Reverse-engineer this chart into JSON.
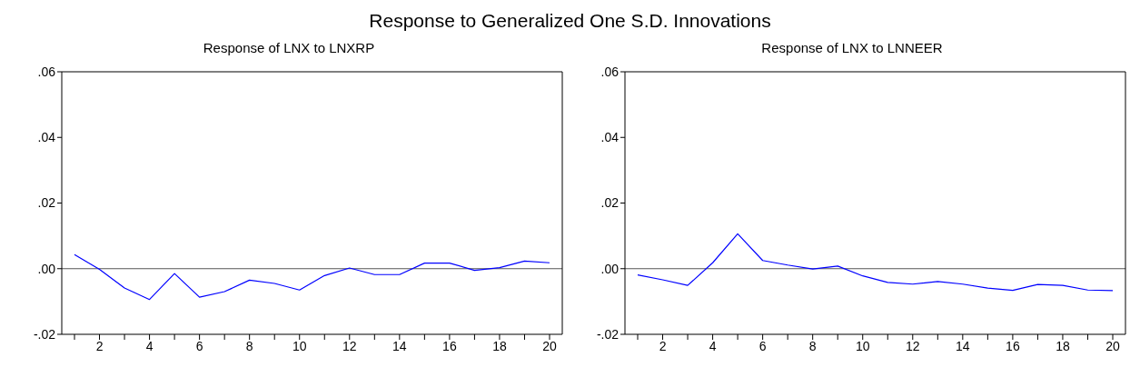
{
  "chart_data": [
    {
      "type": "line",
      "title": "Response to Generalized One S.D. Innovations",
      "subtitle": "Response of LNX to LNXRP",
      "categories": [
        null,
        "2",
        null,
        "4",
        null,
        "6",
        null,
        "8",
        null,
        "10",
        null,
        "12",
        null,
        "14",
        null,
        "16",
        null,
        "18",
        null,
        "20"
      ],
      "series": [
        {
          "color": "#0000ff",
          "values": [
            0.0043,
            -0.0002,
            -0.0059,
            -0.0094,
            -0.0015,
            -0.0087,
            -0.007,
            -0.0035,
            -0.0045,
            -0.0065,
            -0.0021,
            0.0002,
            -0.0018,
            -0.0018,
            0.0017,
            0.0017,
            -0.0005,
            0.0003,
            0.0023,
            0.0018
          ]
        }
      ],
      "ylim": [
        -0.02,
        0.06
      ],
      "yticks": [
        {
          "value": -0.02,
          "label": "-.02"
        },
        {
          "value": 0,
          "label": ".00"
        },
        {
          "value": 0.02,
          "label": ".02"
        },
        {
          "value": 0.04,
          "label": ".04"
        },
        {
          "value": 0.06,
          "label": ".06"
        }
      ],
      "ref_lines": [
        {
          "axis": "y",
          "value": 0,
          "color": "#555555"
        }
      ],
      "grid": false,
      "legend": false,
      "marker": "none",
      "line_style": "solid"
    },
    {
      "type": "line",
      "subtitle": "Response of LNX to LNNEER",
      "categories": [
        null,
        "2",
        null,
        "4",
        null,
        "6",
        null,
        "8",
        null,
        "10",
        null,
        "12",
        null,
        "14",
        null,
        "16",
        null,
        "18",
        null,
        "20"
      ],
      "series": [
        {
          "color": "#0000ff",
          "values": [
            -0.0019,
            -0.0034,
            -0.0051,
            0.0018,
            0.0106,
            0.0025,
            0.0011,
            -0.0001,
            0.0008,
            -0.0022,
            -0.0042,
            -0.0047,
            -0.0039,
            -0.0047,
            -0.0059,
            -0.0066,
            -0.0048,
            -0.0051,
            -0.0065,
            -0.0067
          ]
        }
      ],
      "ylim": [
        -0.02,
        0.06
      ],
      "yticks": [
        {
          "value": -0.02,
          "label": "-.02"
        },
        {
          "value": 0,
          "label": ".00"
        },
        {
          "value": 0.02,
          "label": ".02"
        },
        {
          "value": 0.04,
          "label": ".04"
        },
        {
          "value": 0.06,
          "label": ".06"
        }
      ],
      "ref_lines": [
        {
          "axis": "y",
          "value": 0,
          "color": "#555555"
        }
      ],
      "grid": false,
      "legend": false,
      "marker": "none",
      "line_style": "solid"
    }
  ]
}
